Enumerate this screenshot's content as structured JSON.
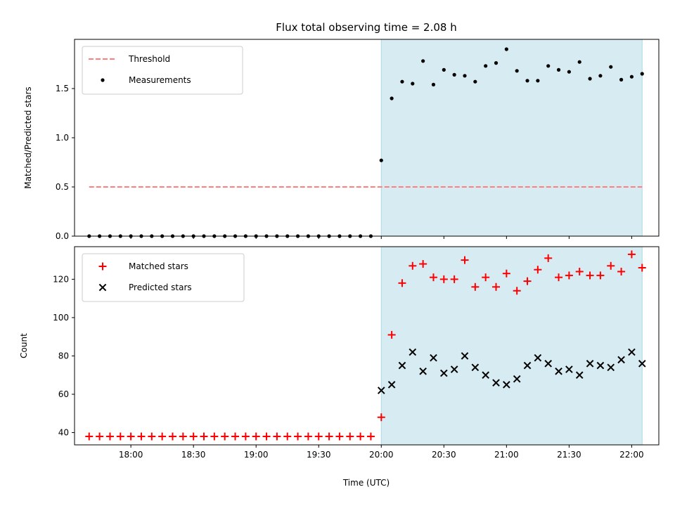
{
  "chart_data": {
    "title": "Flux total observing time = 2.08 h",
    "xlabel": "Time (UTC)",
    "x_unit": "minutes after 17:30 UTC",
    "x_tick_labels": [
      "18:00",
      "18:30",
      "19:00",
      "19:30",
      "20:00",
      "20:30",
      "21:00",
      "21:30",
      "22:00"
    ],
    "x_tick_values": [
      30,
      60,
      90,
      120,
      150,
      180,
      210,
      240,
      270
    ],
    "xlim": [
      3,
      283
    ],
    "shade_span": [
      150,
      275
    ],
    "shade_color": "#add8e6",
    "panels": [
      {
        "type": "scatter",
        "ylabel": "Matched/Predicted stars",
        "ylim": [
          0,
          2.0
        ],
        "y_ticks": [
          0.0,
          0.5,
          1.0,
          1.5
        ],
        "y_tick_labels": [
          "0.0",
          "0.5",
          "1.0",
          "1.5"
        ],
        "legend_position": "top-left",
        "threshold": {
          "name": "Threshold",
          "y": 0.5,
          "x_range": [
            10,
            275
          ],
          "color": "#ff7f7f"
        },
        "series": [
          {
            "name": "Measurements",
            "color": "#000000",
            "marker": "dot",
            "x": [
              10,
              15,
              20,
              25,
              30,
              35,
              40,
              45,
              50,
              55,
              60,
              65,
              70,
              75,
              80,
              85,
              90,
              95,
              100,
              105,
              110,
              115,
              120,
              125,
              130,
              135,
              140,
              145,
              150,
              155,
              160,
              165,
              170,
              175,
              180,
              185,
              190,
              195,
              200,
              205,
              210,
              215,
              220,
              225,
              230,
              235,
              240,
              245,
              250,
              255,
              260,
              265,
              270,
              275
            ],
            "y": [
              0,
              0,
              0,
              0,
              0,
              0,
              0,
              0,
              0,
              0,
              0,
              0,
              0,
              0,
              0,
              0,
              0,
              0,
              0,
              0,
              0,
              0,
              0,
              0,
              0,
              0,
              0,
              0,
              0.77,
              1.4,
              1.57,
              1.55,
              1.78,
              1.54,
              1.69,
              1.64,
              1.63,
              1.57,
              1.73,
              1.76,
              1.9,
              1.68,
              1.58,
              1.58,
              1.73,
              1.69,
              1.67,
              1.77,
              1.6,
              1.63,
              1.72,
              1.59,
              1.62,
              1.65
            ]
          }
        ]
      },
      {
        "type": "scatter",
        "ylabel": "Count",
        "ylim": [
          33.6,
          137
        ],
        "y_ticks": [
          40,
          60,
          80,
          100,
          120
        ],
        "y_tick_labels": [
          "40",
          "60",
          "80",
          "100",
          "120"
        ],
        "legend_position": "top-left",
        "series": [
          {
            "name": "Matched stars",
            "color": "#ff0000",
            "marker": "plus",
            "x": [
              10,
              15,
              20,
              25,
              30,
              35,
              40,
              45,
              50,
              55,
              60,
              65,
              70,
              75,
              80,
              85,
              90,
              95,
              100,
              105,
              110,
              115,
              120,
              125,
              130,
              135,
              140,
              145,
              150,
              155,
              160,
              165,
              170,
              175,
              180,
              185,
              190,
              195,
              200,
              205,
              210,
              215,
              220,
              225,
              230,
              235,
              240,
              245,
              250,
              255,
              260,
              265,
              270,
              275
            ],
            "y": [
              38,
              38,
              38,
              38,
              38,
              38,
              38,
              38,
              38,
              38,
              38,
              38,
              38,
              38,
              38,
              38,
              38,
              38,
              38,
              38,
              38,
              38,
              38,
              38,
              38,
              38,
              38,
              38,
              48,
              91,
              118,
              127,
              128,
              121,
              120,
              120,
              130,
              116,
              121,
              116,
              123,
              114,
              119,
              125,
              131,
              121,
              122,
              124,
              122,
              122,
              127,
              124,
              133,
              126
            ]
          },
          {
            "name": "Predicted stars",
            "color": "#000000",
            "marker": "cross",
            "x": [
              150,
              155,
              160,
              165,
              170,
              175,
              180,
              185,
              190,
              195,
              200,
              205,
              210,
              215,
              220,
              225,
              230,
              235,
              240,
              245,
              250,
              255,
              260,
              265,
              270,
              275
            ],
            "y": [
              62,
              65,
              75,
              82,
              72,
              79,
              71,
              73,
              80,
              74,
              70,
              66,
              65,
              68,
              75,
              79,
              76,
              72,
              73,
              70,
              76,
              75,
              74,
              78,
              82,
              76
            ]
          }
        ]
      }
    ]
  }
}
